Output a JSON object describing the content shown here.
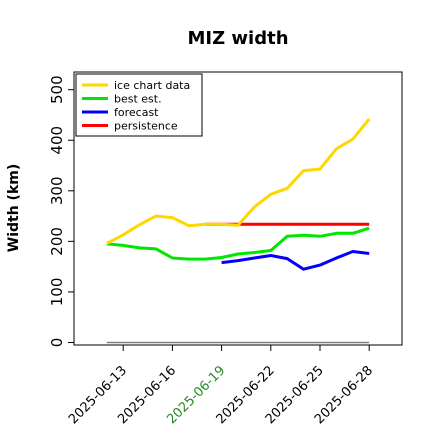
{
  "chart_data": {
    "type": "line",
    "title": "MIZ width",
    "xlabel": "",
    "ylabel": "Width (km)",
    "ylim": [
      -5,
      535
    ],
    "yticks": [
      0,
      100,
      200,
      300,
      400,
      500
    ],
    "xlim": [
      "2025-06-10",
      "2025-06-30"
    ],
    "xticks": [
      {
        "date": "2025-06-13",
        "label": "2025-06-13",
        "color": "#000000"
      },
      {
        "date": "2025-06-16",
        "label": "2025-06-16",
        "color": "#000000"
      },
      {
        "date": "2025-06-19",
        "label": "2025-06-19",
        "color": "#228B22"
      },
      {
        "date": "2025-06-22",
        "label": "2025-06-22",
        "color": "#000000"
      },
      {
        "date": "2025-06-25",
        "label": "2025-06-25",
        "color": "#000000"
      },
      {
        "date": "2025-06-28",
        "label": "2025-06-28",
        "color": "#000000"
      }
    ],
    "grid": false,
    "legend_position": "top-left",
    "series": [
      {
        "name": "ice chart data",
        "color": "#FFD700",
        "x": [
          "2025-06-12",
          "2025-06-13",
          "2025-06-14",
          "2025-06-15",
          "2025-06-16",
          "2025-06-17",
          "2025-06-18",
          "2025-06-19",
          "2025-06-20",
          "2025-06-21",
          "2025-06-22",
          "2025-06-23",
          "2025-06-24",
          "2025-06-25",
          "2025-06-26",
          "2025-06-27",
          "2025-06-28"
        ],
        "y": [
          196,
          213,
          233,
          250,
          247,
          231,
          234,
          234,
          232,
          268,
          293,
          305,
          340,
          343,
          383,
          402,
          442
        ]
      },
      {
        "name": "best est.",
        "color": "#00E600",
        "x": [
          "2025-06-12",
          "2025-06-13",
          "2025-06-14",
          "2025-06-15",
          "2025-06-16",
          "2025-06-17",
          "2025-06-18",
          "2025-06-19",
          "2025-06-20",
          "2025-06-21",
          "2025-06-22",
          "2025-06-23",
          "2025-06-24",
          "2025-06-25",
          "2025-06-26",
          "2025-06-27",
          "2025-06-28"
        ],
        "y": [
          195,
          192,
          187,
          185,
          167,
          165,
          165,
          168,
          175,
          178,
          182,
          210,
          212,
          210,
          216,
          216,
          226
        ]
      },
      {
        "name": "forecast",
        "color": "#0000FF",
        "x": [
          "2025-06-19",
          "2025-06-20",
          "2025-06-21",
          "2025-06-22",
          "2025-06-23",
          "2025-06-24",
          "2025-06-25",
          "2025-06-26",
          "2025-06-27",
          "2025-06-28"
        ],
        "y": [
          158,
          162,
          167,
          172,
          166,
          145,
          153,
          167,
          180,
          176
        ]
      },
      {
        "name": "persistence",
        "color": "#FF0000",
        "x": [
          "2025-06-18",
          "2025-06-28"
        ],
        "y": [
          234,
          234
        ]
      },
      {
        "name": "",
        "color": "#808080",
        "x": [
          "2025-06-12",
          "2025-06-28"
        ],
        "y": [
          0,
          0
        ]
      }
    ]
  }
}
